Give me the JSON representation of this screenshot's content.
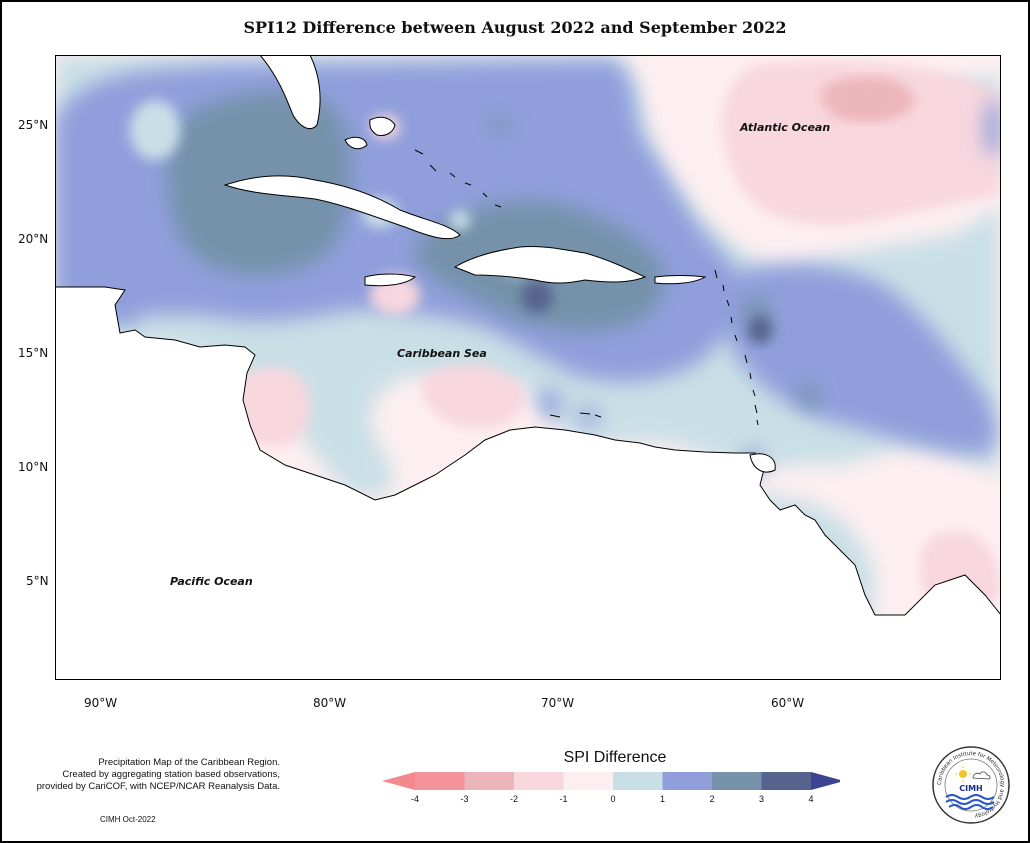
{
  "title": "SPI12 Difference between August 2022 and September 2022",
  "ocean_labels": {
    "atlantic": "Atlantic Ocean",
    "caribbean": "Caribbean Sea",
    "pacific": "Pacific Ocean"
  },
  "lat_ticks": [
    "25°N",
    "20°N",
    "15°N",
    "10°N",
    "5°N"
  ],
  "lon_ticks": [
    "90°W",
    "80°W",
    "70°W",
    "60°W"
  ],
  "credit_lines": [
    "Precipitation Map of the Caribbean Region.",
    "Created by aggregating station based observations,",
    "provided by CariCOF, with NCEP/NCAR Reanalysis Data."
  ],
  "stamp": "CIMH Oct-2022",
  "legend": {
    "title": "SPI Difference",
    "tick_labels": [
      "-4",
      "-3",
      "-2",
      "-1",
      "0",
      "1",
      "2",
      "3",
      "4"
    ],
    "colors": [
      "#f4939a",
      "#ecb5b9",
      "#f8d7de",
      "#fdeff1",
      "#c9dfe6",
      "#909fdc",
      "#7592aa",
      "#56638f"
    ],
    "under_color": "#f3888f",
    "over_color": "#3b4490"
  },
  "logo": {
    "initials": "CIMH",
    "ring_text": "Caribbean Institute for Meteorology and Hydrology"
  }
}
